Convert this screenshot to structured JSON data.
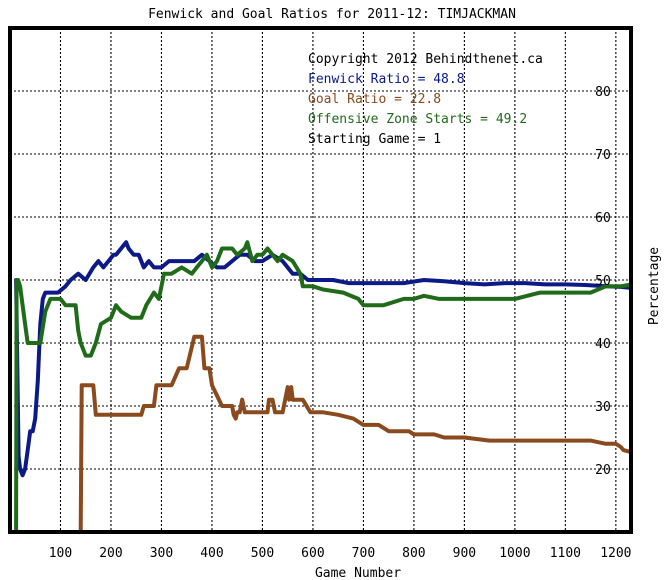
{
  "chart_data": {
    "type": "line",
    "title": "Fenwick and Goal Ratios for 2011-12: TIMJACKMAN",
    "xlabel": "Game Number",
    "ylabel": "Percentage",
    "xlim": [
      0,
      1230
    ],
    "ylim": [
      10,
      90
    ],
    "x_ticks": [
      "100",
      "200",
      "300",
      "400",
      "500",
      "600",
      "700",
      "800",
      "900",
      "1000",
      "1100",
      "1200"
    ],
    "y_ticks": [
      "20",
      "30",
      "40",
      "50",
      "60",
      "70",
      "80"
    ],
    "x_tick_values": [
      100,
      200,
      300,
      400,
      500,
      600,
      700,
      800,
      900,
      1000,
      1100,
      1200
    ],
    "y_tick_values": [
      20,
      30,
      40,
      50,
      60,
      70,
      80
    ],
    "legend_placement": "top-right",
    "annotations": [
      "Copyright 2012 Behindthenet.ca",
      "Fenwick Ratio = 48.8",
      "Goal Ratio = 22.8",
      "Offensive Zone Starts = 49.2",
      "Starting Game = 1"
    ],
    "colors": {
      "fenwick": "#0b1a86",
      "goal": "#8a4a1e",
      "ozs": "#1f6b1a",
      "annotation": "#000000",
      "grid": "#000000"
    },
    "series": [
      {
        "name": "Fenwick Ratio",
        "x": [
          12,
          17,
          20,
          25,
          30,
          35,
          40,
          45,
          50,
          55,
          60,
          65,
          70,
          80,
          95,
          110,
          120,
          135,
          150,
          165,
          175,
          185,
          195,
          205,
          210,
          220,
          230,
          235,
          245,
          255,
          265,
          275,
          285,
          300,
          315,
          330,
          345,
          365,
          380,
          395,
          410,
          425,
          440,
          455,
          470,
          485,
          500,
          520,
          540,
          560,
          575,
          590,
          610,
          640,
          670,
          700,
          740,
          780,
          820,
          860,
          900,
          940,
          980,
          1020,
          1060,
          1100,
          1140,
          1180,
          1210,
          1225
        ],
        "values": [
          50,
          22,
          20,
          19,
          20,
          23,
          26,
          26,
          28,
          34,
          43,
          47,
          48,
          48,
          48,
          49,
          50,
          51,
          50,
          52,
          53,
          52,
          53,
          54,
          54,
          55,
          56,
          55,
          54,
          54,
          52,
          53,
          52,
          52,
          53,
          53,
          53,
          53,
          54,
          53,
          52,
          52,
          53,
          54,
          54,
          53,
          53,
          54,
          53,
          51,
          51,
          50,
          50,
          50,
          49.5,
          49.5,
          49.5,
          49.5,
          50,
          49.8,
          49.5,
          49.3,
          49.5,
          49.5,
          49.3,
          49.3,
          49.2,
          49,
          48.9,
          48.8
        ]
      },
      {
        "name": "Goal Ratio",
        "x": [
          140,
          142,
          148,
          152,
          160,
          165,
          170,
          200,
          230,
          260,
          265,
          285,
          290,
          310,
          320,
          335,
          340,
          350,
          365,
          380,
          385,
          395,
          400,
          420,
          440,
          443,
          447,
          450,
          455,
          460,
          465,
          480,
          500,
          510,
          513,
          520,
          525,
          540,
          550,
          553,
          557,
          560,
          565,
          580,
          595,
          620,
          650,
          680,
          700,
          730,
          750,
          760,
          790,
          800,
          840,
          860,
          900,
          950,
          1000,
          1050,
          1100,
          1150,
          1180,
          1195,
          1200,
          1210,
          1215,
          1225
        ],
        "values": [
          10,
          33.3,
          33.3,
          33.3,
          33.3,
          33.3,
          28.6,
          28.6,
          28.6,
          28.6,
          30,
          30,
          33.3,
          33.3,
          33.3,
          36,
          36,
          36,
          41,
          41,
          36,
          36,
          33.3,
          30,
          30,
          28.6,
          28,
          29,
          29,
          31,
          29,
          29,
          29,
          29,
          31,
          31,
          29,
          29,
          33,
          31,
          33,
          31,
          31,
          31,
          29,
          29,
          28.6,
          28,
          27,
          27,
          26,
          26,
          26,
          25.5,
          25.5,
          25,
          25,
          24.5,
          24.5,
          24.5,
          24.5,
          24.5,
          24,
          24,
          24,
          23.5,
          23,
          22.8
        ]
      },
      {
        "name": "Offensive Zone Starts",
        "x": [
          12,
          13,
          16,
          20,
          25,
          30,
          35,
          40,
          50,
          60,
          70,
          80,
          90,
          100,
          110,
          120,
          130,
          135,
          140,
          150,
          160,
          170,
          180,
          200,
          210,
          220,
          240,
          260,
          270,
          285,
          295,
          305,
          320,
          340,
          360,
          370,
          380,
          390,
          400,
          410,
          420,
          430,
          440,
          450,
          465,
          470,
          480,
          490,
          500,
          510,
          520,
          530,
          540,
          560,
          575,
          580,
          600,
          620,
          660,
          690,
          700,
          720,
          740,
          780,
          800,
          820,
          850,
          900,
          950,
          1000,
          1050,
          1100,
          1150,
          1180,
          1200,
          1210,
          1225
        ],
        "values": [
          10,
          50,
          50,
          49,
          46,
          43,
          40,
          40,
          40,
          40,
          45,
          47,
          47,
          47,
          46,
          46,
          46,
          42,
          40,
          38,
          38,
          40,
          43,
          44,
          46,
          45,
          44,
          44,
          46,
          48,
          47,
          51,
          51,
          52,
          51,
          52,
          53,
          54,
          52,
          53,
          55,
          55,
          55,
          54,
          55,
          56,
          53,
          54,
          54,
          55,
          54,
          53,
          54,
          53,
          51,
          49,
          49,
          48.5,
          48,
          47,
          46,
          46,
          46,
          47,
          47,
          47.5,
          47,
          47,
          47,
          47,
          48,
          48,
          48,
          49,
          49,
          49,
          49.2
        ]
      }
    ]
  }
}
